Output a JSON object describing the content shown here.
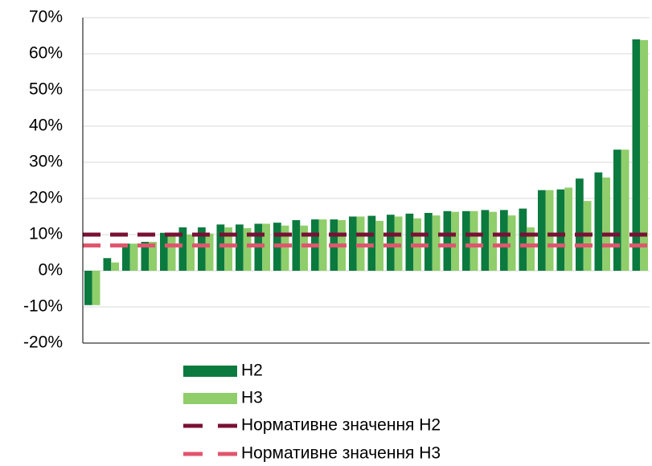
{
  "chart_data": {
    "type": "bar",
    "categories": [
      null,
      null,
      null,
      null,
      null,
      null,
      null,
      null,
      null,
      null,
      null,
      null,
      null,
      null,
      null,
      null,
      null,
      null,
      null,
      null,
      null,
      null,
      null,
      null,
      null,
      null,
      null,
      null,
      null,
      null
    ],
    "series": [
      {
        "name": "Н2",
        "color": "#0b7a3e",
        "values": [
          -9.5,
          3.5,
          7.5,
          8,
          10.5,
          12,
          12,
          12.8,
          12.8,
          13,
          13.3,
          14,
          14.2,
          14.2,
          15,
          15.2,
          15.5,
          15.8,
          16,
          16.5,
          16.5,
          16.8,
          16.8,
          17.2,
          22.3,
          22.5,
          25.5,
          27.2,
          33.5,
          64
        ]
      },
      {
        "name": "Н3",
        "color": "#8fce6a",
        "values": [
          -9.5,
          2.3,
          7.5,
          8,
          10.5,
          10,
          10.3,
          12,
          11.8,
          13,
          12.5,
          12.5,
          14.2,
          14,
          15,
          13.8,
          15,
          14.5,
          15.3,
          16.3,
          16.5,
          16.3,
          15.3,
          12,
          22.3,
          23,
          19.3,
          25.8,
          33.5,
          63.8
        ]
      }
    ],
    "reference_lines": [
      {
        "name": "Нормативне значення Н2",
        "color": "#7a1035",
        "value": 10
      },
      {
        "name": "Нормативне значення Н3",
        "color": "#e0566e",
        "value": 7
      }
    ],
    "ylim": [
      -20,
      70
    ],
    "yticks": [
      {
        "value": -20,
        "label": "-20%"
      },
      {
        "value": -10,
        "label": "-10%"
      },
      {
        "value": 0,
        "label": "0%"
      },
      {
        "value": 10,
        "label": "10%"
      },
      {
        "value": 20,
        "label": "20%"
      },
      {
        "value": 30,
        "label": "30%"
      },
      {
        "value": 40,
        "label": "40%"
      },
      {
        "value": 50,
        "label": "50%"
      },
      {
        "value": 60,
        "label": "60%"
      },
      {
        "value": 70,
        "label": "70%"
      }
    ],
    "grid": true
  }
}
